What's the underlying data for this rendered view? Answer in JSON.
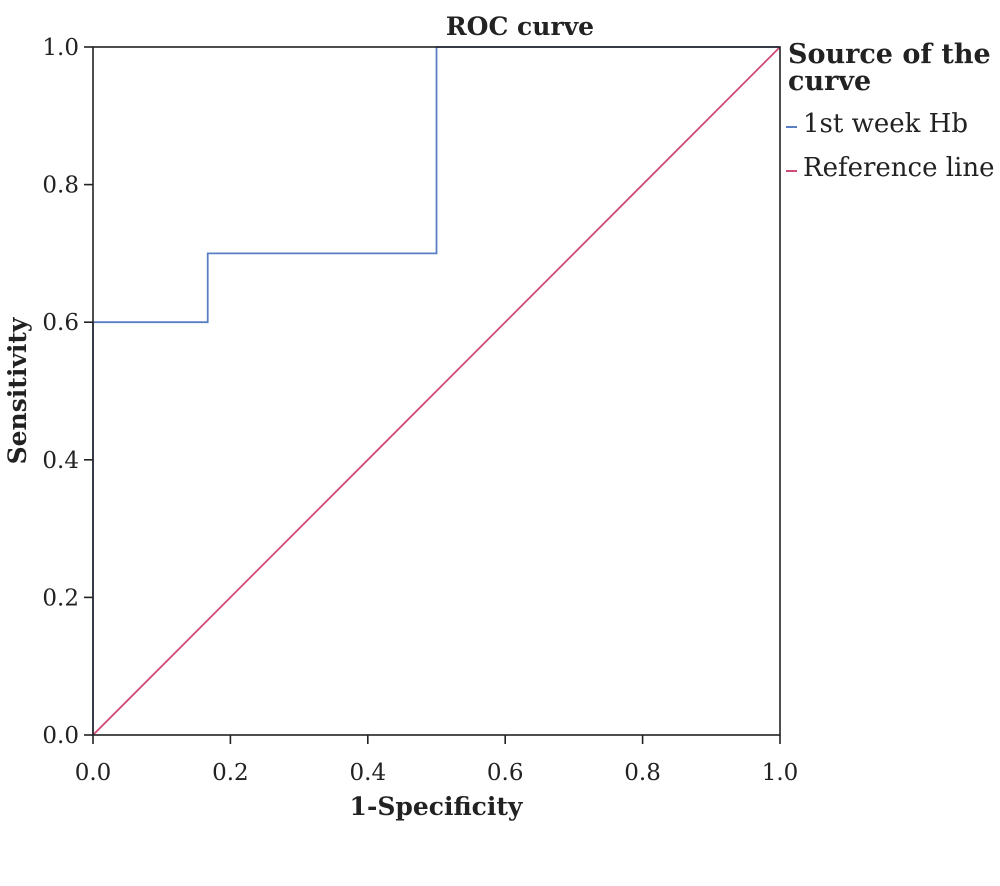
{
  "chart_data": {
    "type": "line",
    "title": "ROC curve",
    "xlabel": "1-Specificity",
    "ylabel": "Sensitivity",
    "xlim": [
      0,
      1.0
    ],
    "ylim": [
      0,
      1.0
    ],
    "x_ticks": [
      "0.0",
      "0.2",
      "0.4",
      "0.6",
      "0.8",
      "1.0"
    ],
    "y_ticks": [
      "0.0",
      "0.2",
      "0.4",
      "0.6",
      "0.8",
      "1.0"
    ],
    "x_tick_values": [
      0,
      0.2,
      0.4,
      0.6,
      0.8,
      1.0
    ],
    "y_tick_values": [
      0,
      0.2,
      0.4,
      0.6,
      0.8,
      1.0
    ],
    "grid": false,
    "legend": {
      "title": "Source of the curve",
      "title_lines": [
        "Source of the",
        "curve"
      ],
      "placement": "right"
    },
    "series": [
      {
        "name": "1st week Hb",
        "color": "#5b7fc4",
        "x": [
          0,
          0,
          0.167,
          0.167,
          0.5,
          0.5,
          1.0
        ],
        "y": [
          0,
          0.6,
          0.6,
          0.7,
          0.7,
          1.0,
          1.0
        ]
      },
      {
        "name": "Reference line",
        "color": "#d04a78",
        "x": [
          0,
          1.0
        ],
        "y": [
          0,
          1.0
        ]
      }
    ]
  }
}
